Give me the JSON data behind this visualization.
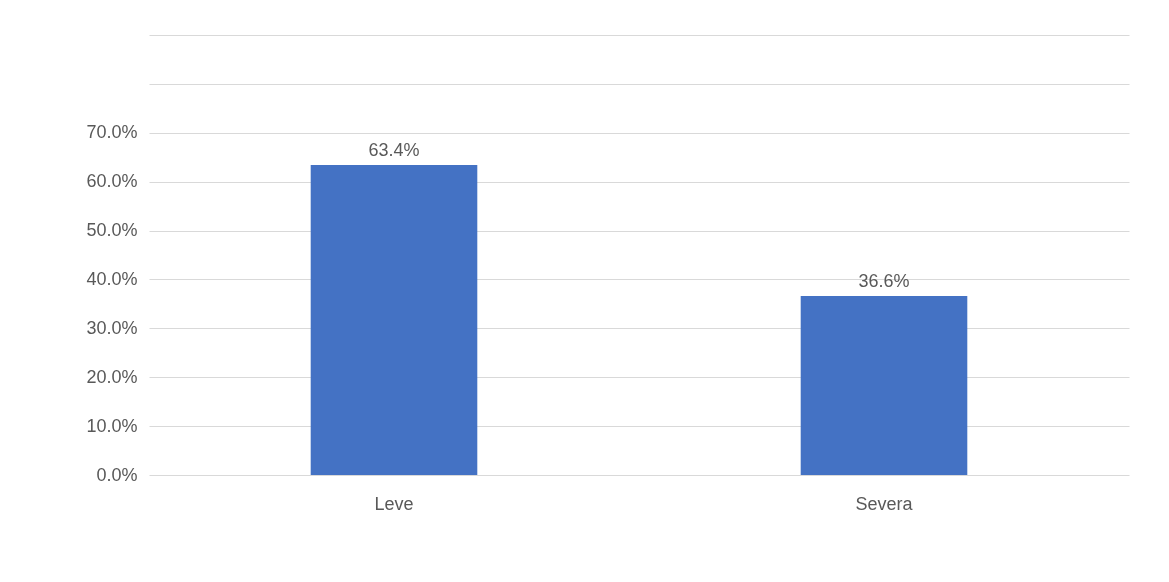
{
  "chart_data": {
    "type": "bar",
    "categories": [
      "Leve",
      "Severa"
    ],
    "values": [
      63.4,
      36.6
    ],
    "color": "#4472c4",
    "value_labels": [
      "63.4%",
      "36.6%"
    ],
    "ylim": [
      0,
      90
    ],
    "yticks": [
      {
        "value": 0,
        "label": "0.0%"
      },
      {
        "value": 10,
        "label": "10.0%"
      },
      {
        "value": 20,
        "label": "20.0%"
      },
      {
        "value": 30,
        "label": "30.0%"
      },
      {
        "value": 40,
        "label": "40.0%"
      },
      {
        "value": 50,
        "label": "50.0%"
      },
      {
        "value": 60,
        "label": "60.0%"
      },
      {
        "value": 70,
        "label": "70.0%"
      },
      {
        "value": 80,
        "label": null
      },
      {
        "value": 90,
        "label": null
      }
    ],
    "grid": true
  }
}
